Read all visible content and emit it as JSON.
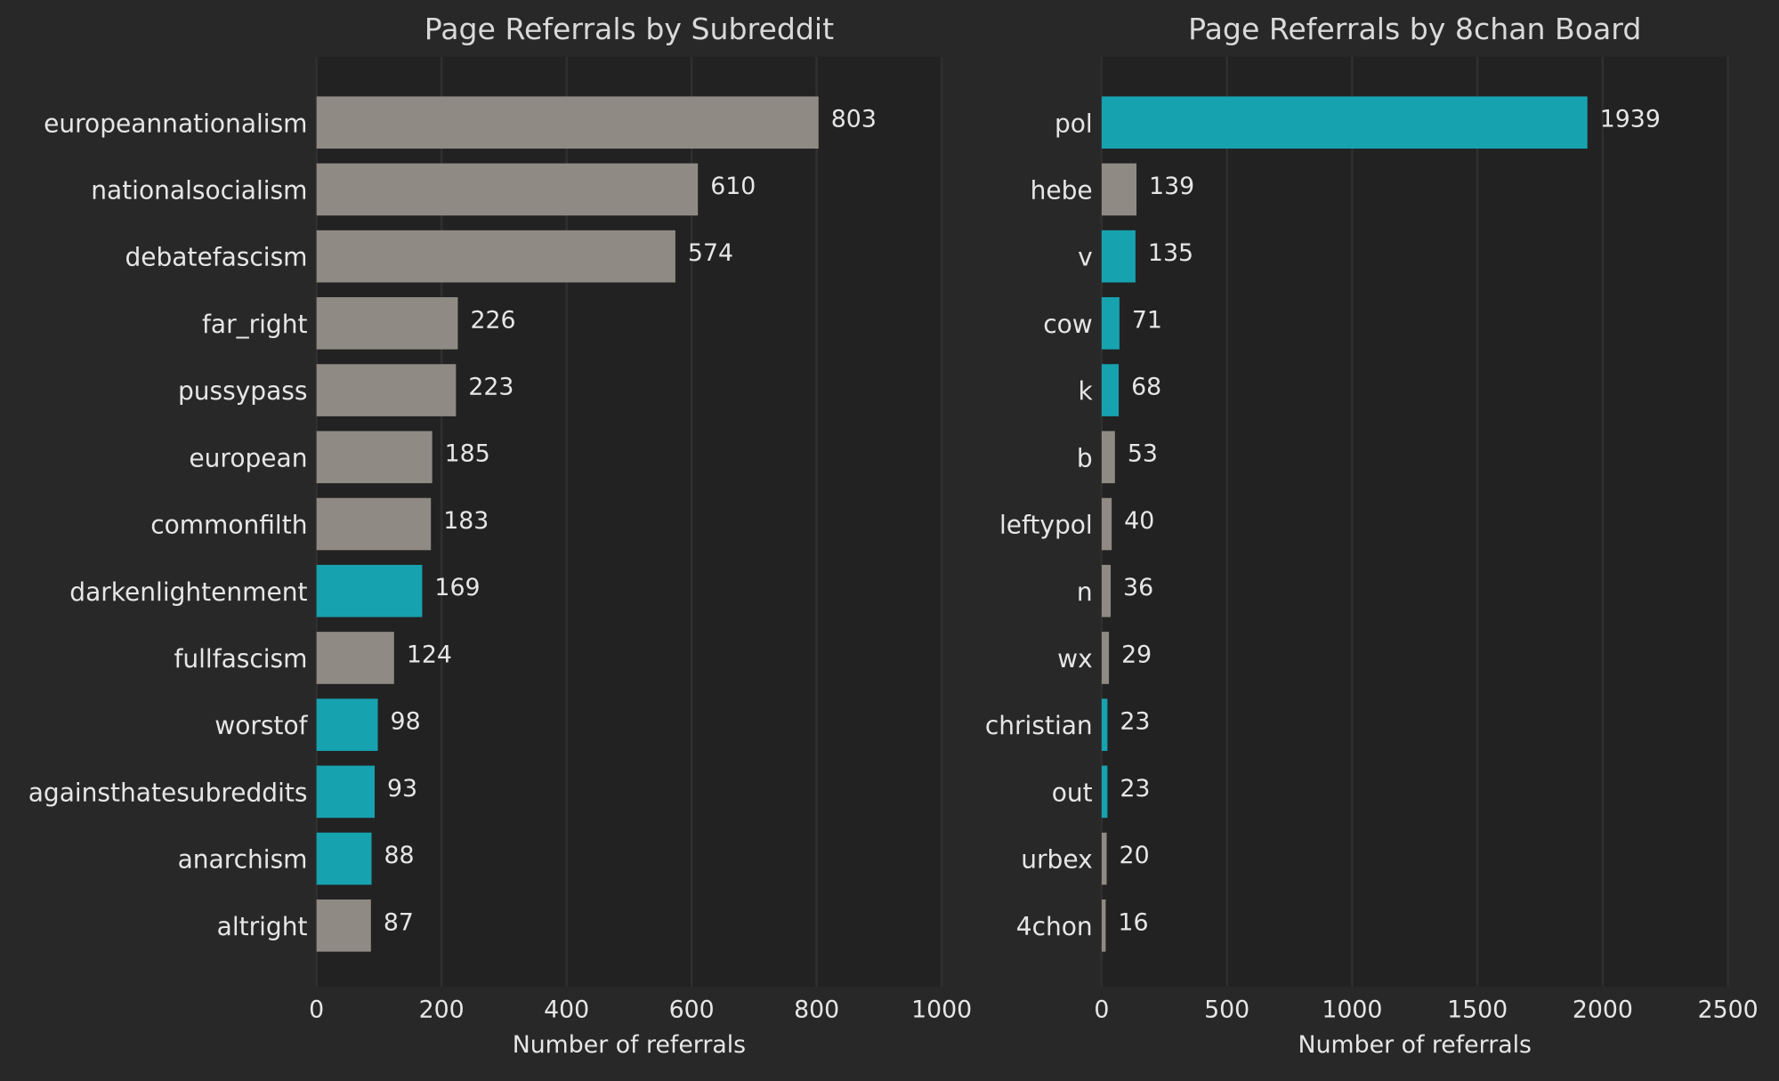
{
  "chart_data": [
    {
      "type": "bar",
      "orientation": "horizontal",
      "title": "Page Referrals by Subreddit",
      "x_label": "Number of referrals",
      "categories": [
        "europeannationalism",
        "nationalsocialism",
        "debatefascism",
        "far_right",
        "pussypass",
        "european",
        "commonfilth",
        "darkenlightenment",
        "fullfascism",
        "worstof",
        "againsthatesubreddits",
        "anarchism",
        "altright"
      ],
      "values": [
        803,
        610,
        574,
        226,
        223,
        185,
        183,
        169,
        124,
        98,
        93,
        88,
        87
      ],
      "colors": [
        "#8f8a84",
        "#8f8a84",
        "#8f8a84",
        "#8f8a84",
        "#8f8a84",
        "#8f8a84",
        "#8f8a84",
        "#17a2b0",
        "#8f8a84",
        "#17a2b0",
        "#17a2b0",
        "#17a2b0",
        "#8f8a84"
      ],
      "xlim": [
        0,
        1000
      ],
      "xticks": [
        0,
        200,
        400,
        600,
        800,
        1000
      ],
      "grid": true
    },
    {
      "type": "bar",
      "orientation": "horizontal",
      "title": "Page Referrals by 8chan Board",
      "x_label": "Number of referrals",
      "categories": [
        "pol",
        "hebe",
        "v",
        "cow",
        "k",
        "b",
        "leftypol",
        "n",
        "wx",
        "christian",
        "out",
        "urbex",
        "4chon"
      ],
      "values": [
        1939,
        139,
        135,
        71,
        68,
        53,
        40,
        36,
        29,
        23,
        23,
        20,
        16
      ],
      "colors": [
        "#17a2b0",
        "#8f8a84",
        "#17a2b0",
        "#17a2b0",
        "#17a2b0",
        "#8f8a84",
        "#8f8a84",
        "#8f8a84",
        "#8f8a84",
        "#17a2b0",
        "#17a2b0",
        "#8f8a84",
        "#8f8a84"
      ],
      "xlim": [
        0,
        2500
      ],
      "xticks": [
        0,
        500,
        1000,
        1500,
        2000,
        2500
      ],
      "grid": true
    }
  ]
}
